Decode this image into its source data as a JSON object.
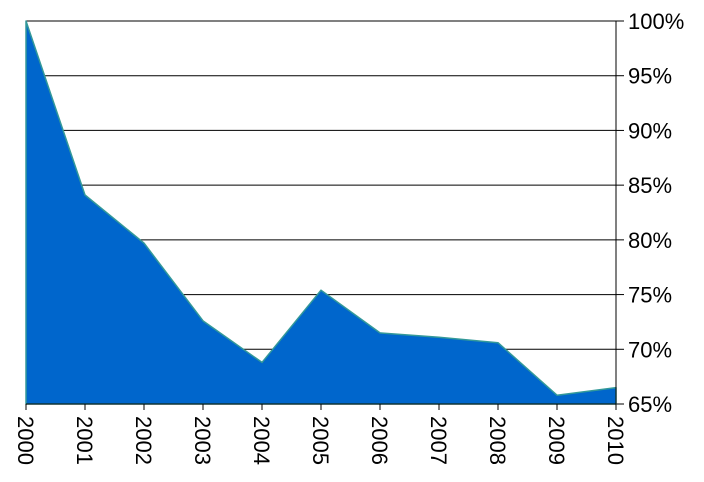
{
  "chart_data": {
    "type": "area",
    "title": "",
    "xlabel": "",
    "ylabel": "",
    "x": [
      "2000",
      "2001",
      "2002",
      "2003",
      "2004",
      "2005",
      "2006",
      "2007",
      "2008",
      "2009",
      "2010"
    ],
    "values": [
      1.0,
      0.841,
      0.797,
      0.726,
      0.688,
      0.754,
      0.715,
      0.711,
      0.706,
      0.658,
      0.665
    ],
    "ylim": [
      0.65,
      1.0
    ],
    "y_ticks": [
      1.0,
      0.95,
      0.9,
      0.85,
      0.8,
      0.75,
      0.7,
      0.65
    ],
    "y_tick_labels": [
      "100%",
      "95%",
      "90%",
      "85%",
      "80%",
      "75%",
      "70%",
      "65%"
    ],
    "y_axis_side": "right",
    "x_tick_rotation": "vertical",
    "grid": true,
    "legend": "none",
    "colors": {
      "fill": "#0066CC",
      "outline": "#339999",
      "axis": "#000000",
      "grid": "#000000"
    }
  }
}
